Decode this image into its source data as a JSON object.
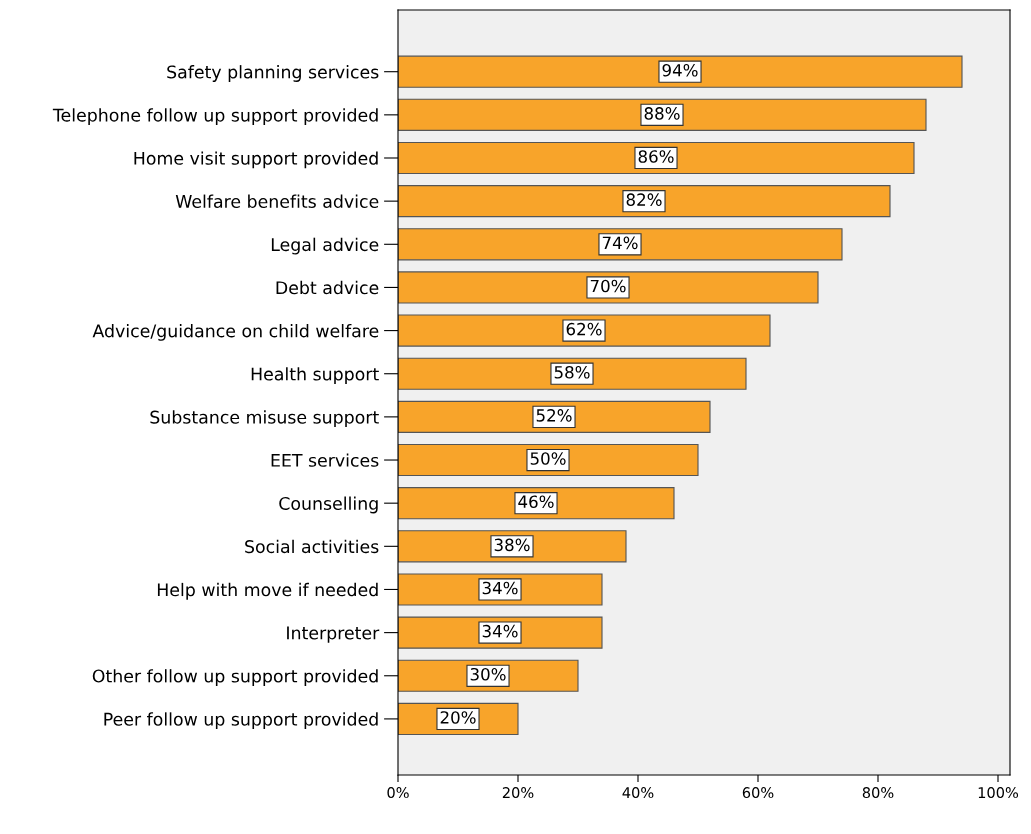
{
  "chart_data": {
    "type": "bar",
    "orientation": "horizontal",
    "categories": [
      "Safety planning services",
      "Telephone follow up support provided",
      "Home visit support provided",
      "Welfare benefits advice",
      "Legal advice",
      "Debt advice",
      "Advice/guidance on child welfare",
      "Health support",
      "Substance misuse support",
      "EET services",
      "Counselling",
      "Social activities",
      "Help with move if needed",
      "Interpreter",
      "Other follow up support provided",
      "Peer follow up support provided"
    ],
    "values": [
      94,
      88,
      86,
      82,
      74,
      70,
      62,
      58,
      52,
      50,
      46,
      38,
      34,
      34,
      30,
      20
    ],
    "value_labels": [
      "94%",
      "88%",
      "86%",
      "82%",
      "74%",
      "70%",
      "62%",
      "58%",
      "52%",
      "50%",
      "46%",
      "38%",
      "34%",
      "34%",
      "30%",
      "20%"
    ],
    "color": "#f8a42a",
    "xlim": [
      0,
      102
    ],
    "xticks": [
      {
        "value": 0,
        "label": "0%"
      },
      {
        "value": 20,
        "label": "20%"
      },
      {
        "value": 40,
        "label": "40%"
      },
      {
        "value": 60,
        "label": "60%"
      },
      {
        "value": 80,
        "label": "80%"
      },
      {
        "value": 100,
        "label": "100%"
      }
    ],
    "grid": false,
    "legend": false
  }
}
